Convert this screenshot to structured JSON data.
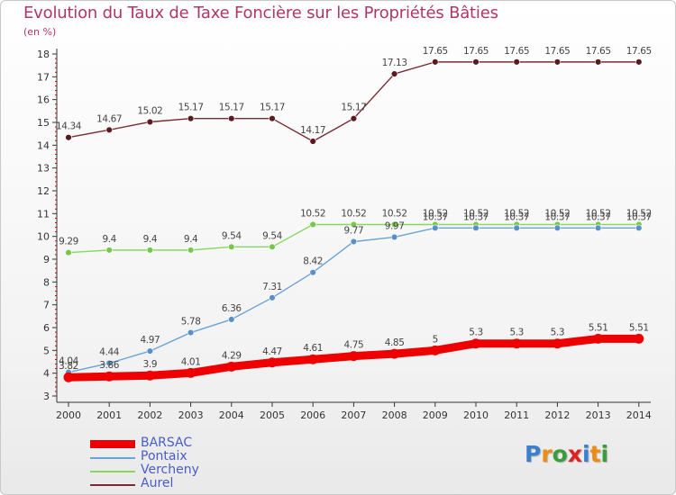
{
  "chart_data": {
    "type": "line",
    "title": "Evolution du Taux de Taxe Foncière sur les Propriétés Bâties",
    "subtitle": "(en %)",
    "categories": [
      "2000",
      "2001",
      "2002",
      "2003",
      "2004",
      "2005",
      "2006",
      "2007",
      "2008",
      "2009",
      "2010",
      "2011",
      "2012",
      "2013",
      "2014"
    ],
    "y_ticks": [
      "3",
      "4",
      "5",
      "6",
      "7",
      "8",
      "9",
      "10",
      "11",
      "12",
      "13",
      "14",
      "15",
      "16",
      "17",
      "18"
    ],
    "ylim": [
      3,
      18
    ],
    "grid": false,
    "legend_position": "bottom-left",
    "series": [
      {
        "name": "Aurel",
        "color": "#7a2a32",
        "marker": "#5a1a20",
        "values": [
          14.34,
          14.67,
          15.02,
          15.17,
          15.17,
          15.17,
          14.17,
          15.17,
          17.13,
          17.65,
          17.65,
          17.65,
          17.65,
          17.65,
          17.65
        ],
        "labels": [
          "14.34",
          "14.67",
          "15.02",
          "15.17",
          "15.17",
          "15.17",
          "14.17",
          "15.17",
          "17.13",
          "17.65",
          "17.65",
          "17.65",
          "17.65",
          "17.65",
          "17.65"
        ]
      },
      {
        "name": "Vercheny",
        "color": "#88d860",
        "marker": "#77c84a",
        "values": [
          9.29,
          9.4,
          9.4,
          9.4,
          9.54,
          9.54,
          10.52,
          10.52,
          10.52,
          10.52,
          10.52,
          10.52,
          10.52,
          10.52,
          10.52
        ],
        "labels": [
          "9.29",
          "9.4",
          "9.4",
          "9.4",
          "9.54",
          "9.54",
          "10.52",
          "10.52",
          "10.52",
          "10.52",
          "10.52",
          "10.52",
          "10.52",
          "10.52",
          "10.52"
        ]
      },
      {
        "name": "Pontaix",
        "color": "#6aa3d6",
        "marker": "#5a90c8",
        "values": [
          4.04,
          4.44,
          4.97,
          5.78,
          6.36,
          7.31,
          8.42,
          9.77,
          9.97,
          10.37,
          10.37,
          10.37,
          10.37,
          10.37,
          10.37
        ],
        "labels": [
          "4.04",
          "4.44",
          "4.97",
          "5.78",
          "6.36",
          "7.31",
          "8.42",
          "9.77",
          "9.97",
          "10.37",
          "10.37",
          "10.37",
          "10.37",
          "10.37",
          "10.37"
        ]
      },
      {
        "name": "BARSAC",
        "color": "#ee0000",
        "marker": "#ee0000",
        "values": [
          3.82,
          3.86,
          3.9,
          4.01,
          4.29,
          4.47,
          4.61,
          4.75,
          4.85,
          5,
          5.3,
          5.3,
          5.3,
          5.51,
          5.51
        ],
        "labels": [
          "3.82",
          "3.86",
          "3.9",
          "4.01",
          "4.29",
          "4.47",
          "4.61",
          "4.75",
          "4.85",
          "5",
          "5.3",
          "5.3",
          "5.3",
          "5.51",
          "5.51"
        ]
      }
    ]
  },
  "legend": [
    {
      "label": "BARSAC",
      "color": "#ee0000"
    },
    {
      "label": "Pontaix",
      "color": "#6aa3d6"
    },
    {
      "label": "Vercheny",
      "color": "#88d860"
    },
    {
      "label": "Aurel",
      "color": "#7a2a32"
    }
  ],
  "logo": {
    "letters": [
      "P",
      "r",
      "o",
      "x",
      "i",
      "t",
      "i"
    ],
    "colors": [
      "#3a7fd0",
      "#f08a10",
      "#3a9c3a",
      "#e02020",
      "#3a7fd0",
      "#f08a10",
      "#3a9c3a"
    ]
  }
}
